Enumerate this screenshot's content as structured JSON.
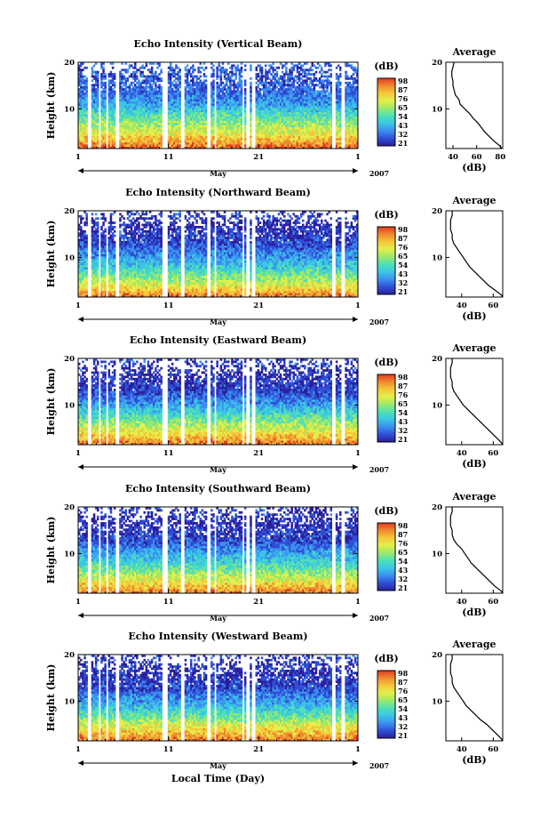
{
  "figure": {
    "bottom_xlabel": "Local Time (Day)",
    "month_label": "May",
    "year_label": "2007",
    "y_label": "Height (km)",
    "colorbar_unit": "(dB)",
    "profile_title": "Average",
    "profile_xlabel": "(dB)"
  },
  "colors": {
    "colormap": [
      "#2b1f9c",
      "#2f4fd6",
      "#3c8ff0",
      "#39c6e6",
      "#4fe0b6",
      "#9ce86a",
      "#e3f04a",
      "#f5c83a",
      "#f08a2e",
      "#e03a22"
    ],
    "gap": "#ffffff"
  },
  "chart_data": [
    {
      "type": "heatmap",
      "title": "Echo Intensity (Vertical Beam)",
      "xlabel": "May",
      "ylabel": "Height (km)",
      "x_ticks": [
        "1",
        "11",
        "21",
        "1"
      ],
      "xlim": [
        1,
        32
      ],
      "y_ticks": [
        "10",
        "20"
      ],
      "ylim": [
        1.5,
        20
      ],
      "colorbar": {
        "unit": "(dB)",
        "ticks": [
          "98",
          "87",
          "76",
          "65",
          "54",
          "43",
          "32",
          "21"
        ],
        "range": [
          21,
          98
        ]
      },
      "data_gaps_day": [
        [
          2.1,
          2.4
        ],
        [
          3.2,
          3.5
        ],
        [
          4.1,
          4.4
        ],
        [
          5.2,
          5.5
        ],
        [
          10.2,
          11.0
        ],
        [
          12.4,
          12.7
        ],
        [
          15.3,
          15.6
        ],
        [
          16.0,
          16.3
        ],
        [
          19.1,
          19.4
        ],
        [
          19.7,
          20.0
        ],
        [
          20.3,
          20.6
        ],
        [
          29.2,
          29.5
        ],
        [
          30.2,
          30.5
        ]
      ],
      "profile": {
        "title": "Average",
        "xlabel": "(dB)",
        "x_ticks": [
          "40",
          "60",
          "80"
        ],
        "xlim": [
          34,
          82
        ],
        "height_km": [
          1.5,
          2,
          3,
          4,
          5,
          6,
          7,
          8,
          9,
          10,
          11,
          12,
          13,
          14,
          15,
          16,
          17,
          18,
          19,
          20
        ],
        "avg_db": [
          81,
          80,
          75,
          71,
          67,
          64,
          61,
          57,
          54,
          50,
          46,
          45,
          42,
          41,
          40,
          40,
          39,
          39,
          40,
          41
        ]
      }
    },
    {
      "type": "heatmap",
      "title": "Echo Intensity (Northward Beam)",
      "xlabel": "May",
      "ylabel": "Height (km)",
      "x_ticks": [
        "1",
        "11",
        "21",
        "1"
      ],
      "xlim": [
        1,
        32
      ],
      "y_ticks": [
        "10",
        "20"
      ],
      "ylim": [
        1.5,
        20
      ],
      "colorbar": {
        "unit": "(dB)",
        "ticks": [
          "98",
          "87",
          "76",
          "65",
          "54",
          "43",
          "32",
          "21"
        ],
        "range": [
          21,
          98
        ]
      },
      "data_gaps_day": [
        [
          2.1,
          2.4
        ],
        [
          3.2,
          3.5
        ],
        [
          4.1,
          4.4
        ],
        [
          5.2,
          5.5
        ],
        [
          10.2,
          11.0
        ],
        [
          12.4,
          12.7
        ],
        [
          15.3,
          15.6
        ],
        [
          16.0,
          16.3
        ],
        [
          19.1,
          19.4
        ],
        [
          19.7,
          20.0
        ],
        [
          20.3,
          20.6
        ],
        [
          29.2,
          29.5
        ],
        [
          30.2,
          30.5
        ]
      ],
      "profile": {
        "title": "Average",
        "xlabel": "(dB)",
        "x_ticks": [
          "40",
          "60"
        ],
        "xlim": [
          30,
          66
        ],
        "height_km": [
          1.5,
          2,
          3,
          4,
          5,
          6,
          7,
          8,
          9,
          10,
          11,
          12,
          13,
          14,
          15,
          16,
          17,
          18,
          19,
          20
        ],
        "avg_db": [
          66,
          65,
          61,
          57,
          54,
          51,
          48,
          45,
          43,
          41,
          39,
          37,
          35,
          34,
          34,
          33,
          33,
          33,
          34,
          34
        ]
      }
    },
    {
      "type": "heatmap",
      "title": "Echo Intensity (Eastward Beam)",
      "xlabel": "May",
      "ylabel": "Height (km)",
      "x_ticks": [
        "1",
        "11",
        "21",
        "1"
      ],
      "xlim": [
        1,
        32
      ],
      "y_ticks": [
        "10",
        "20"
      ],
      "ylim": [
        1.5,
        20
      ],
      "colorbar": {
        "unit": "(dB)",
        "ticks": [
          "98",
          "87",
          "76",
          "65",
          "54",
          "43",
          "32",
          "21"
        ],
        "range": [
          21,
          98
        ]
      },
      "data_gaps_day": [
        [
          2.1,
          2.4
        ],
        [
          3.2,
          3.5
        ],
        [
          4.1,
          4.4
        ],
        [
          5.2,
          5.5
        ],
        [
          10.2,
          11.0
        ],
        [
          12.4,
          12.7
        ],
        [
          15.3,
          15.6
        ],
        [
          16.0,
          16.3
        ],
        [
          19.1,
          19.4
        ],
        [
          19.7,
          20.0
        ],
        [
          20.3,
          20.6
        ],
        [
          29.2,
          29.5
        ],
        [
          30.2,
          30.5
        ]
      ],
      "profile": {
        "title": "Average",
        "xlabel": "(dB)",
        "x_ticks": [
          "40",
          "60"
        ],
        "xlim": [
          30,
          66
        ],
        "height_km": [
          1.5,
          2,
          3,
          4,
          5,
          6,
          7,
          8,
          9,
          10,
          11,
          12,
          13,
          14,
          15,
          16,
          17,
          18,
          19,
          20
        ],
        "avg_db": [
          66,
          65,
          62,
          59,
          56,
          53,
          50,
          47,
          44,
          41,
          39,
          37,
          35,
          34,
          34,
          33,
          33,
          33,
          34,
          34
        ]
      }
    },
    {
      "type": "heatmap",
      "title": "Echo Intensity (Southward Beam)",
      "xlabel": "May",
      "ylabel": "Height (km)",
      "x_ticks": [
        "1",
        "11",
        "21",
        "1"
      ],
      "xlim": [
        1,
        32
      ],
      "y_ticks": [
        "10",
        "20"
      ],
      "ylim": [
        1.5,
        20
      ],
      "colorbar": {
        "unit": "(dB)",
        "ticks": [
          "98",
          "87",
          "76",
          "65",
          "54",
          "43",
          "32",
          "21"
        ],
        "range": [
          21,
          98
        ]
      },
      "data_gaps_day": [
        [
          2.1,
          2.4
        ],
        [
          3.2,
          3.5
        ],
        [
          4.1,
          4.4
        ],
        [
          5.2,
          5.5
        ],
        [
          10.2,
          11.0
        ],
        [
          12.4,
          12.7
        ],
        [
          15.3,
          15.6
        ],
        [
          16.0,
          16.3
        ],
        [
          19.1,
          19.4
        ],
        [
          19.7,
          20.0
        ],
        [
          20.3,
          20.6
        ],
        [
          29.2,
          29.5
        ],
        [
          30.2,
          30.5
        ]
      ],
      "profile": {
        "title": "Average",
        "xlabel": "(dB)",
        "x_ticks": [
          "40",
          "60"
        ],
        "xlim": [
          30,
          66
        ],
        "height_km": [
          1.5,
          2,
          3,
          4,
          5,
          6,
          7,
          8,
          9,
          10,
          11,
          12,
          13,
          14,
          15,
          16,
          17,
          18,
          19,
          20
        ],
        "avg_db": [
          66,
          65,
          61,
          58,
          55,
          52,
          49,
          46,
          44,
          42,
          40,
          37,
          35,
          34,
          34,
          33,
          33,
          33,
          34,
          34
        ]
      }
    },
    {
      "type": "heatmap",
      "title": "Echo Intensity (Westward Beam)",
      "xlabel": "May",
      "ylabel": "Height (km)",
      "x_ticks": [
        "1",
        "11",
        "21",
        "1"
      ],
      "xlim": [
        1,
        32
      ],
      "y_ticks": [
        "10",
        "20"
      ],
      "ylim": [
        1.5,
        20
      ],
      "colorbar": {
        "unit": "(dB)",
        "ticks": [
          "98",
          "87",
          "76",
          "65",
          "54",
          "43",
          "32",
          "21"
        ],
        "range": [
          21,
          98
        ]
      },
      "data_gaps_day": [
        [
          2.1,
          2.4
        ],
        [
          3.2,
          3.5
        ],
        [
          4.1,
          4.4
        ],
        [
          5.2,
          5.5
        ],
        [
          10.2,
          11.0
        ],
        [
          12.4,
          12.7
        ],
        [
          15.3,
          15.6
        ],
        [
          16.0,
          16.3
        ],
        [
          19.1,
          19.4
        ],
        [
          19.7,
          20.0
        ],
        [
          20.3,
          20.6
        ],
        [
          29.2,
          29.5
        ],
        [
          30.2,
          30.5
        ]
      ],
      "profile": {
        "title": "Average",
        "xlabel": "(dB)",
        "x_ticks": [
          "40",
          "60"
        ],
        "xlim": [
          30,
          66
        ],
        "height_km": [
          1.5,
          2,
          3,
          4,
          5,
          6,
          7,
          8,
          9,
          10,
          11,
          12,
          13,
          14,
          15,
          16,
          17,
          18,
          19,
          20
        ],
        "avg_db": [
          66,
          65,
          62,
          59,
          56,
          52,
          49,
          46,
          43,
          41,
          39,
          37,
          35,
          34,
          34,
          33,
          33,
          33,
          34,
          34
        ]
      }
    }
  ]
}
